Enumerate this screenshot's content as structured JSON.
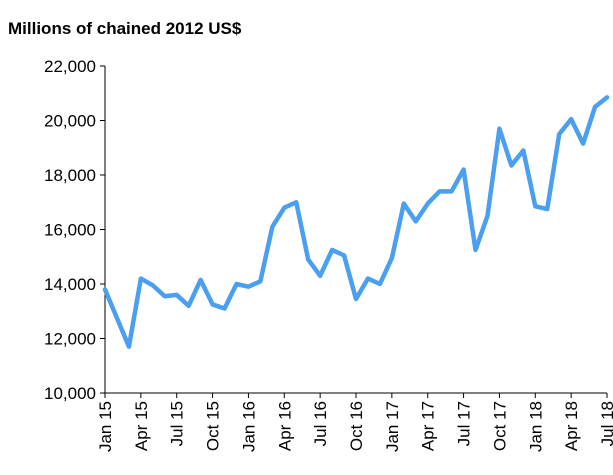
{
  "chart_data": {
    "type": "line",
    "title": "Millions of chained 2012 US$",
    "categories": [
      "Jan 15",
      null,
      null,
      "Apr 15",
      null,
      null,
      "Jul 15",
      null,
      null,
      "Oct 15",
      null,
      null,
      "Jan 16",
      null,
      null,
      "Apr 16",
      null,
      null,
      "Jul 16",
      null,
      null,
      "Oct 16",
      null,
      null,
      "Jan 17",
      null,
      null,
      "Apr 17",
      null,
      null,
      "Jul 17",
      null,
      null,
      "Oct 17",
      null,
      null,
      "Jan 18",
      null,
      null,
      "Apr 18",
      null,
      null,
      "Jul 18"
    ],
    "series": [
      {
        "name": null,
        "color": "#4a9ff0",
        "values": [
          13800,
          12750,
          11700,
          14200,
          13950,
          13550,
          13600,
          13200,
          14150,
          13250,
          13100,
          14000,
          13900,
          14100,
          16100,
          16800,
          17000,
          14900,
          14300,
          15250,
          15050,
          13450,
          14200,
          14000,
          14950,
          16950,
          16300,
          16950,
          17400,
          17400,
          18200,
          15250,
          16500,
          19700,
          18350,
          18900,
          16850,
          16750,
          19500,
          20050,
          19150,
          20500,
          20850
        ]
      }
    ],
    "ylim": [
      10000,
      22000
    ],
    "yticks": [
      {
        "value": 10000,
        "label": "10,000"
      },
      {
        "value": 12000,
        "label": "12,000"
      },
      {
        "value": 14000,
        "label": "14,000"
      },
      {
        "value": 16000,
        "label": "16,000"
      },
      {
        "value": 18000,
        "label": "18,000"
      },
      {
        "value": 20000,
        "label": "20,000"
      },
      {
        "value": 22000,
        "label": "22,000"
      }
    ]
  }
}
